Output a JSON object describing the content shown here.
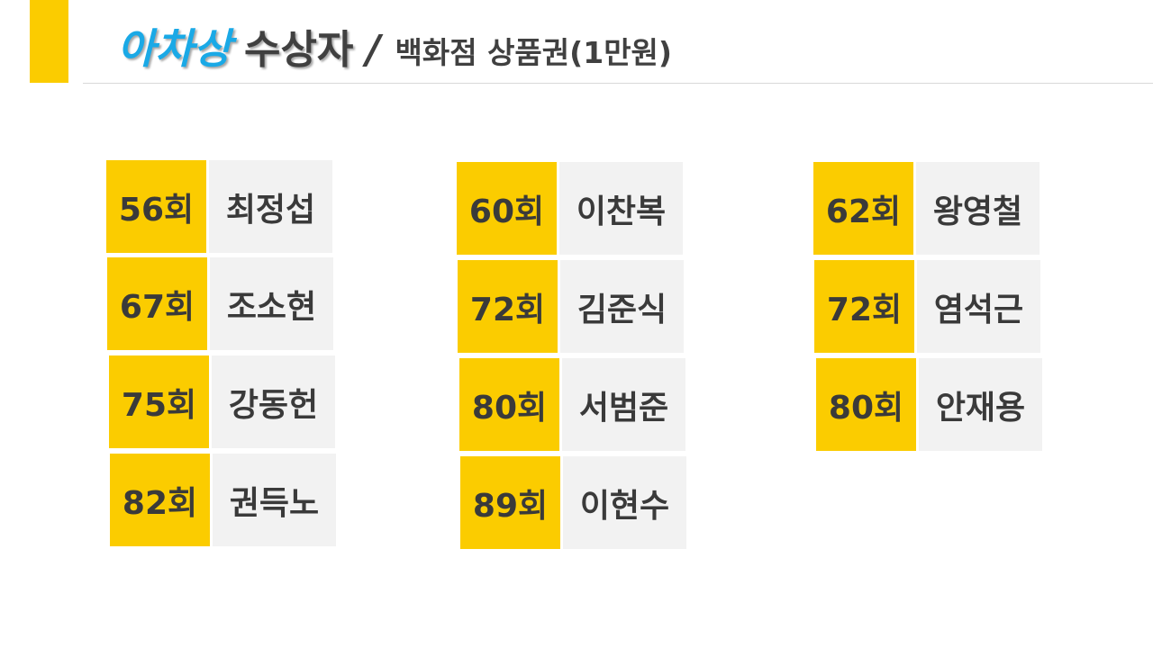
{
  "header": {
    "title_highlight": "아차상",
    "title_main": "수상자",
    "title_separator": "/",
    "title_sub": "백화점 상품권(1만원)"
  },
  "colors": {
    "accent": "#fbcc00",
    "title_blue": "#1aa9e6",
    "name_bg": "#f2f2f2",
    "text": "#3a3a3a"
  },
  "winners": [
    [
      {
        "round": "56회",
        "name": "최정섭"
      },
      {
        "round": "67회",
        "name": "조소현"
      },
      {
        "round": "75회",
        "name": "강동헌"
      },
      {
        "round": "82회",
        "name": "권득노"
      }
    ],
    [
      {
        "round": "60회",
        "name": "이찬복"
      },
      {
        "round": "72회",
        "name": "김준식"
      },
      {
        "round": "80회",
        "name": "서범준"
      },
      {
        "round": "89회",
        "name": "이현수"
      }
    ],
    [
      {
        "round": "62회",
        "name": "왕영철"
      },
      {
        "round": "72회",
        "name": "염석근"
      },
      {
        "round": "80회",
        "name": "안재용"
      }
    ]
  ]
}
